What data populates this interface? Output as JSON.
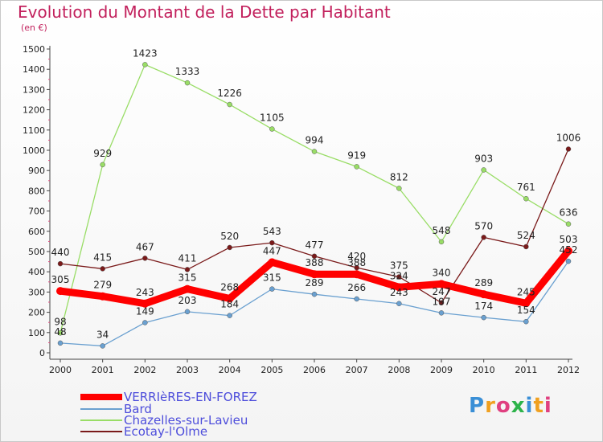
{
  "title": "Evolution du Montant de la Dette par Habitant",
  "subtitle": "(en €)",
  "logo": {
    "chars": [
      "P",
      "r",
      "o",
      "x",
      "i",
      "t",
      "i"
    ],
    "colors": [
      "#3a8fd6",
      "#f0a020",
      "#e04080",
      "#2db34a",
      "#3a8fd6",
      "#f0a020",
      "#e04080"
    ]
  },
  "chart_data": {
    "type": "line",
    "title": "Evolution du Montant de la Dette par Habitant",
    "ylabel": "(en €)",
    "xlabel": "",
    "x": [
      "2000",
      "2001",
      "2002",
      "2003",
      "2004",
      "2005",
      "2006",
      "2007",
      "2008",
      "2009",
      "2010",
      "2011",
      "2012"
    ],
    "ylim": [
      0,
      1500
    ],
    "yticks": [
      0,
      100,
      200,
      300,
      400,
      500,
      600,
      700,
      800,
      900,
      1000,
      1100,
      1200,
      1300,
      1400,
      1500
    ],
    "grid": false,
    "legend_position": "bottom-left",
    "series": [
      {
        "name": "VERRIèRES-EN-FOREZ",
        "color": "#ff0000",
        "values": [
          305,
          279,
          243,
          315,
          268,
          447,
          388,
          388,
          324,
          340,
          289,
          245,
          503
        ]
      },
      {
        "name": "Bard",
        "color": "#6aa0d0",
        "values": [
          48,
          34,
          149,
          203,
          184,
          315,
          289,
          266,
          243,
          197,
          174,
          154,
          452
        ]
      },
      {
        "name": "Chazelles-sur-Lavieu",
        "color": "#99dd66",
        "values": [
          98,
          929,
          1423,
          1333,
          1226,
          1105,
          994,
          919,
          812,
          548,
          903,
          761,
          636
        ]
      },
      {
        "name": "Ecotay-l'Olme",
        "color": "#7a1a1a",
        "values": [
          440,
          415,
          467,
          411,
          520,
          543,
          477,
          420,
          375,
          247,
          570,
          524,
          1006
        ]
      }
    ]
  }
}
